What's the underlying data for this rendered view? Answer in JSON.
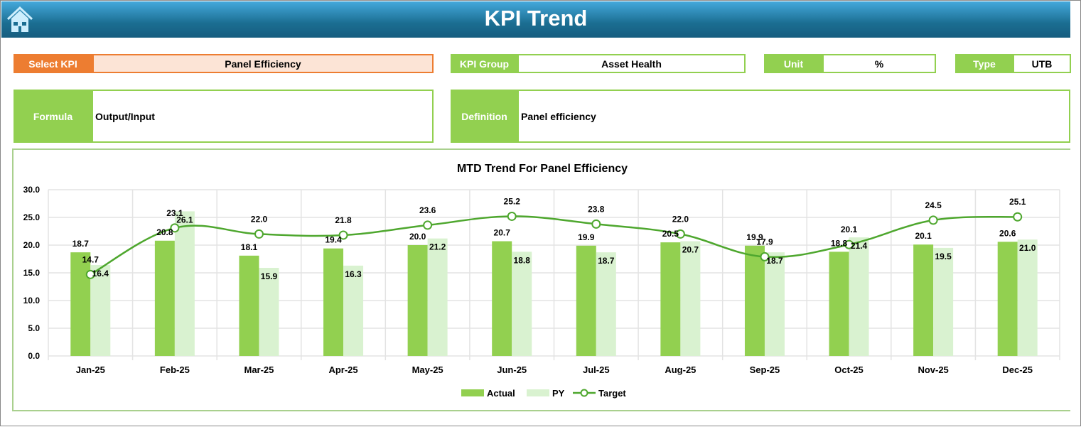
{
  "header": {
    "title": "KPI Trend",
    "home_icon": "home-icon"
  },
  "fields": {
    "select_kpi": {
      "label": "Select KPI",
      "value": "Panel Efficiency"
    },
    "kpi_group": {
      "label": "KPI Group",
      "value": "Asset Health"
    },
    "unit": {
      "label": "Unit",
      "value": "%"
    },
    "type": {
      "label": "Type",
      "value": "UTB"
    },
    "formula": {
      "label": "Formula",
      "value": "Output/Input"
    },
    "definition": {
      "label": "Definition",
      "value": "Panel efficiency"
    }
  },
  "colors": {
    "accent_orange": "#ed7d31",
    "accent_green": "#92d050",
    "actual": "#92d050",
    "py": "#d9f2d0",
    "target": "#4ea72e"
  },
  "chart_data": {
    "type": "bar",
    "title": "MTD Trend For Panel Efficiency",
    "categories": [
      "Jan-25",
      "Feb-25",
      "Mar-25",
      "Apr-25",
      "May-25",
      "Jun-25",
      "Jul-25",
      "Aug-25",
      "Sep-25",
      "Oct-25",
      "Nov-25",
      "Dec-25"
    ],
    "series": [
      {
        "name": "Actual",
        "type": "bar",
        "values": [
          18.7,
          20.8,
          18.1,
          19.4,
          20.0,
          20.7,
          19.9,
          20.5,
          19.9,
          18.8,
          20.1,
          20.6
        ]
      },
      {
        "name": "PY",
        "type": "bar",
        "values": [
          16.4,
          26.1,
          15.9,
          16.3,
          21.2,
          18.8,
          18.7,
          20.7,
          18.7,
          21.4,
          19.5,
          21.0
        ]
      },
      {
        "name": "Target",
        "type": "line",
        "values": [
          14.7,
          23.1,
          22.0,
          21.8,
          23.6,
          25.2,
          23.8,
          22.0,
          17.9,
          20.1,
          24.5,
          25.1
        ]
      }
    ],
    "yticks": [
      "0.0",
      "5.0",
      "10.0",
      "15.0",
      "20.0",
      "25.0",
      "30.0"
    ],
    "ylim": [
      0,
      30
    ],
    "grid": true,
    "legend": "bottom"
  }
}
